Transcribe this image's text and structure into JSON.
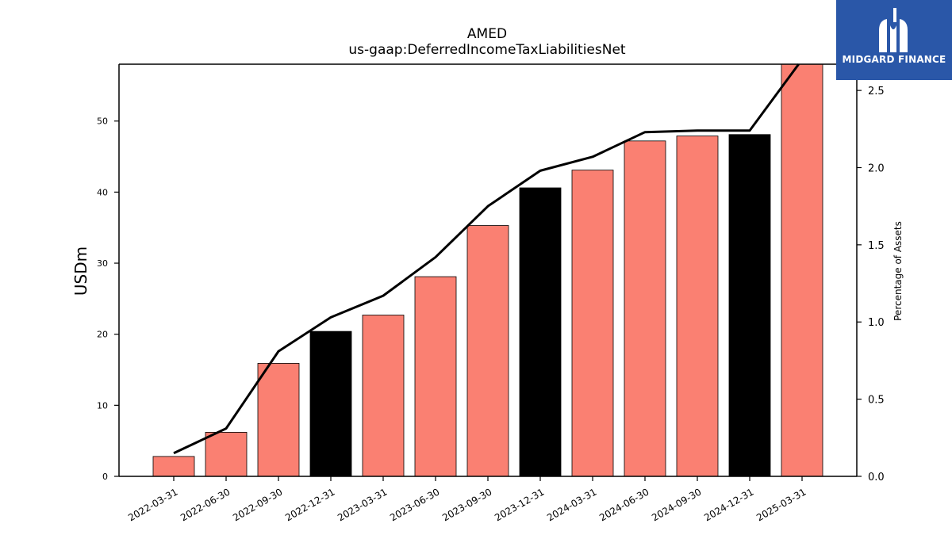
{
  "chart_data": {
    "type": "bar",
    "title": "AMED",
    "subtitle": "us-gaap:DeferredIncomeTaxLiabilitiesNet",
    "ylabel": "USDm",
    "y2label": "Percentage of Assets",
    "categories": [
      "2022-03-31",
      "2022-06-30",
      "2022-09-30",
      "2022-12-31",
      "2023-03-31",
      "2023-06-30",
      "2023-09-30",
      "2023-12-31",
      "2024-03-31",
      "2024-06-30",
      "2024-09-30",
      "2024-12-31",
      "2025-03-31"
    ],
    "series": [
      {
        "type": "bar",
        "axis": "left",
        "values": [
          2.8,
          6.2,
          15.9,
          20.4,
          22.7,
          28.1,
          35.3,
          40.6,
          43.1,
          47.2,
          47.9,
          48.1,
          58.0
        ],
        "colors": [
          "#fa8072",
          "#fa8072",
          "#fa8072",
          "#000000",
          "#fa8072",
          "#fa8072",
          "#fa8072",
          "#000000",
          "#fa8072",
          "#fa8072",
          "#fa8072",
          "#000000",
          "#fa8072"
        ]
      },
      {
        "type": "line",
        "axis": "right",
        "color": "#000000",
        "values": [
          0.15,
          0.31,
          0.81,
          1.03,
          1.17,
          1.42,
          1.75,
          1.98,
          2.07,
          2.23,
          2.24,
          2.24,
          2.7
        ]
      }
    ],
    "ylim": [
      0,
      58
    ],
    "y2lim": [
      0,
      2.67
    ],
    "yticks": [
      0,
      10,
      20,
      30,
      40,
      50
    ],
    "y2ticks": [
      "0.0",
      "0.5",
      "1.0",
      "1.5",
      "2.0",
      "2.5"
    ],
    "grid": false,
    "legend": "none"
  },
  "logo": {
    "text": "MIDGARD FINANCE",
    "color": "#2a57a8"
  }
}
